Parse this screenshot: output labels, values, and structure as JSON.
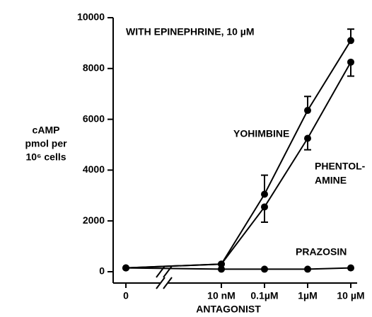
{
  "chart_data": {
    "type": "line",
    "annotation": "WITH EPINEPHRINE, 10 µM",
    "ylabel": [
      "cAMP",
      "pmol per",
      "10⁶ cells"
    ],
    "xlabel": "ANTAGONIST",
    "categories": [
      "0",
      "10 nM",
      "0.1µM",
      "1µM",
      "10 µM"
    ],
    "axis_break": true,
    "color": "#000000",
    "ylim": [
      0,
      10000
    ],
    "yticks": [
      0,
      2000,
      4000,
      6000,
      8000,
      10000
    ],
    "series": [
      {
        "name": [
          "YOHIMBINE"
        ],
        "values": [
          150,
          300,
          3050,
          6350,
          9100
        ],
        "errors": [
          null,
          null,
          750,
          550,
          450
        ],
        "error_direction": "up"
      },
      {
        "name": [
          "PHENTOL-",
          "AMINE"
        ],
        "values": [
          150,
          300,
          2550,
          5250,
          8250
        ],
        "errors": [
          null,
          null,
          600,
          450,
          550
        ],
        "error_direction": "down"
      },
      {
        "name": [
          "PRAZOSIN"
        ],
        "values": [
          150,
          100,
          100,
          100,
          150
        ],
        "errors": [
          null,
          null,
          null,
          null,
          null
        ],
        "error_direction": "up"
      }
    ]
  }
}
